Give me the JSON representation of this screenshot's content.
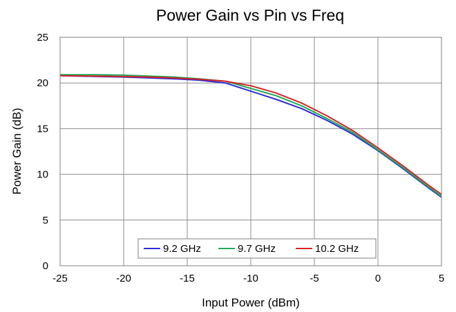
{
  "chart_data": {
    "type": "line",
    "title": "Power Gain vs Pin vs Freq",
    "xlabel": "Input Power (dBm)",
    "ylabel": "Power Gain (dB)",
    "xlim": [
      -25,
      5
    ],
    "ylim": [
      0,
      25
    ],
    "xticks": [
      -25,
      -20,
      -15,
      -10,
      -5,
      0,
      5
    ],
    "yticks": [
      0,
      5,
      10,
      15,
      20,
      25
    ],
    "grid": true,
    "legend_position": "bottom-center",
    "series": [
      {
        "name": "9.2 GHz",
        "color": "#2b2bd6",
        "x": [
          -25,
          -22,
          -20,
          -18,
          -16,
          -14,
          -12,
          -10,
          -8,
          -6,
          -4,
          -2,
          0,
          2,
          4,
          5
        ],
        "y": [
          20.8,
          20.7,
          20.65,
          20.55,
          20.45,
          20.3,
          20.0,
          19.1,
          18.2,
          17.2,
          15.9,
          14.4,
          12.6,
          10.6,
          8.5,
          7.5
        ]
      },
      {
        "name": "9.7 GHz",
        "color": "#1fa85a",
        "x": [
          -25,
          -22,
          -20,
          -18,
          -16,
          -14,
          -12,
          -10,
          -8,
          -6,
          -4,
          -2,
          0,
          2,
          4,
          5
        ],
        "y": [
          20.9,
          20.9,
          20.85,
          20.75,
          20.65,
          20.45,
          20.2,
          19.4,
          18.6,
          17.5,
          16.1,
          14.6,
          12.7,
          10.7,
          8.6,
          7.6
        ]
      },
      {
        "name": "10.2 GHz",
        "color": "#d62424",
        "x": [
          -25,
          -22,
          -20,
          -18,
          -16,
          -14,
          -12,
          -10,
          -8,
          -6,
          -4,
          -2,
          0,
          2,
          4,
          5
        ],
        "y": [
          20.8,
          20.75,
          20.7,
          20.65,
          20.55,
          20.4,
          20.2,
          19.7,
          18.9,
          17.8,
          16.4,
          14.8,
          12.9,
          10.9,
          8.8,
          7.8
        ]
      }
    ]
  }
}
